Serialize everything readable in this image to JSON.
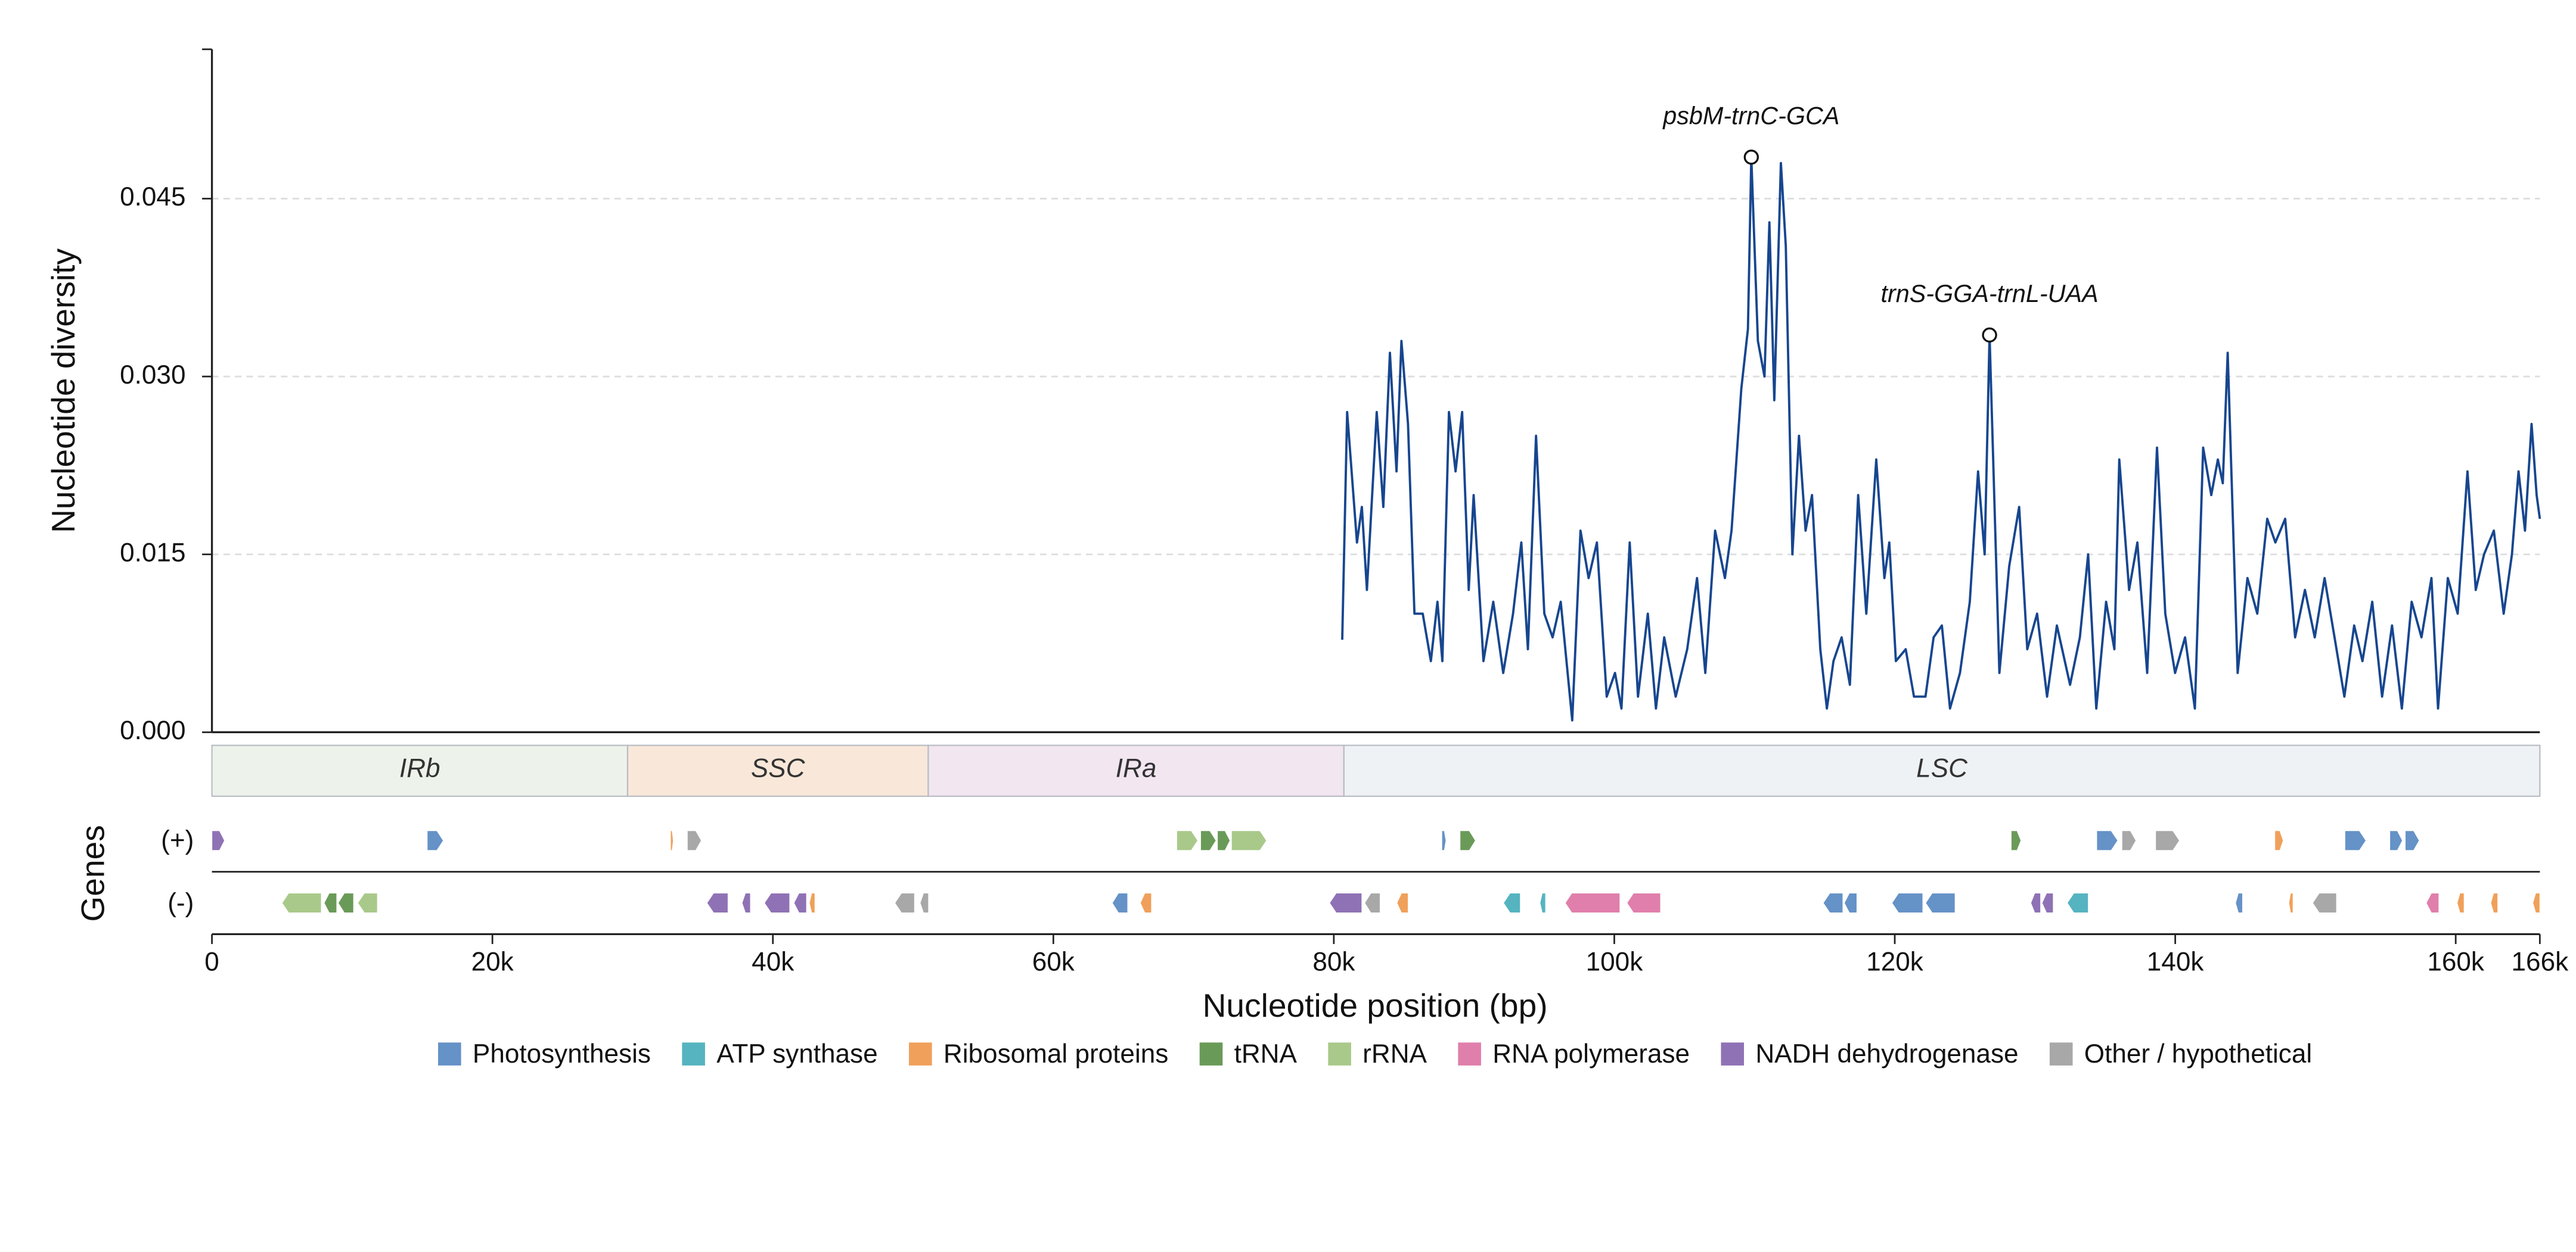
{
  "chart_data": {
    "type": "line",
    "ylabel": "Nucleotide diversity",
    "xlabel": "Nucleotide position (bp)",
    "track_label": "Genes",
    "strand_labels": [
      "(+)",
      "(-)"
    ],
    "color": "#17468f",
    "ylim": [
      0,
      0.0576
    ],
    "yticks": [
      {
        "value": 0,
        "label": "0.000"
      },
      0.015,
      {
        "value": 0.03,
        "label": "0.030"
      },
      0.045
    ],
    "grid": true,
    "xlim": [
      0,
      166000
    ],
    "xticks": [
      0,
      {
        "value": 20000,
        "label": "20k"
      },
      {
        "value": 40000,
        "label": "40k"
      },
      {
        "value": 60000,
        "label": "60k"
      },
      {
        "value": 80000,
        "label": "80k"
      },
      {
        "value": 100000,
        "label": "100k"
      },
      {
        "value": 120000,
        "label": "120k"
      },
      {
        "value": 140000,
        "label": "140k"
      },
      {
        "value": 160000,
        "label": "160k"
      },
      {
        "value": 166000,
        "label": "166k"
      }
    ],
    "x": [
      80600,
      80950,
      81650,
      82000,
      82360,
      83060,
      83530,
      84000,
      84470,
      84820,
      85290,
      85750,
      86340,
      86920,
      87390,
      87740,
      88210,
      88680,
      89150,
      89620,
      89970,
      90670,
      91370,
      92080,
      92780,
      93370,
      93840,
      94420,
      95010,
      95600,
      96180,
      97000,
      97590,
      98170,
      98760,
      99460,
      100050,
      100510,
      101100,
      101690,
      102390,
      102970,
      103560,
      104380,
      105200,
      105900,
      106490,
      107190,
      107890,
      108360,
      109060,
      109530,
      109770,
      110240,
      110710,
      111060,
      111410,
      111880,
      112230,
      112700,
      113170,
      113640,
      114100,
      114690,
      115160,
      115630,
      116210,
      116800,
      117390,
      117970,
      118680,
      119260,
      119610,
      120080,
      120780,
      121370,
      122190,
      122770,
      123360,
      123940,
      124650,
      125350,
      125940,
      126410,
      126760,
      127460,
      128160,
      128870,
      129450,
      130150,
      130860,
      131560,
      132500,
      133200,
      133790,
      134370,
      135070,
      135660,
      136010,
      136710,
      137300,
      138000,
      138700,
      139290,
      139990,
      140700,
      141400,
      141990,
      142570,
      143040,
      143390,
      143740,
      144450,
      145150,
      145850,
      146560,
      147140,
      147840,
      148550,
      149250,
      149950,
      150650,
      151360,
      152060,
      152760,
      153350,
      154050,
      154750,
      155460,
      156160,
      156860,
      157560,
      158270,
      158740,
      159440,
      160140,
      160840,
      161430,
      162020,
      162720,
      163420,
      164010,
      164480,
      164940,
      165410,
      165770,
      166000
    ],
    "values": [
      0.0078,
      0.027,
      0.016,
      0.019,
      0.012,
      0.027,
      0.019,
      0.032,
      0.022,
      0.033,
      0.026,
      0.01,
      0.01,
      0.006,
      0.011,
      0.006,
      0.027,
      0.022,
      0.027,
      0.012,
      0.02,
      0.006,
      0.011,
      0.005,
      0.01,
      0.016,
      0.007,
      0.025,
      0.01,
      0.008,
      0.011,
      0.001,
      0.017,
      0.013,
      0.016,
      0.003,
      0.005,
      0.002,
      0.016,
      0.003,
      0.01,
      0.002,
      0.008,
      0.003,
      0.007,
      0.013,
      0.005,
      0.017,
      0.013,
      0.017,
      0.029,
      0.034,
      0.0485,
      0.033,
      0.03,
      0.043,
      0.028,
      0.048,
      0.041,
      0.015,
      0.025,
      0.017,
      0.02,
      0.007,
      0.002,
      0.006,
      0.008,
      0.004,
      0.02,
      0.01,
      0.023,
      0.013,
      0.016,
      0.006,
      0.007,
      0.003,
      0.003,
      0.008,
      0.009,
      0.002,
      0.005,
      0.011,
      0.022,
      0.015,
      0.0335,
      0.005,
      0.014,
      0.019,
      0.007,
      0.01,
      0.003,
      0.009,
      0.004,
      0.008,
      0.015,
      0.002,
      0.011,
      0.007,
      0.023,
      0.012,
      0.016,
      0.005,
      0.024,
      0.01,
      0.005,
      0.008,
      0.002,
      0.024,
      0.02,
      0.023,
      0.021,
      0.032,
      0.005,
      0.013,
      0.01,
      0.018,
      0.016,
      0.018,
      0.008,
      0.012,
      0.008,
      0.013,
      0.008,
      0.003,
      0.009,
      0.006,
      0.011,
      0.003,
      0.009,
      0.002,
      0.011,
      0.008,
      0.013,
      0.002,
      0.013,
      0.01,
      0.022,
      0.012,
      0.015,
      0.017,
      0.01,
      0.015,
      0.022,
      0.017,
      0.026,
      0.02,
      0.018
    ],
    "annotations": [
      {
        "text": "psbM-trnC-GCA",
        "x": 109770,
        "y": 0.0485
      },
      {
        "text": "trnS-GGA-trnL-UAA",
        "x": 126760,
        "y": 0.0335
      }
    ],
    "regions": [
      {
        "name": "IRb",
        "start": 0,
        "end": 29640,
        "color": "#edf3ea"
      },
      {
        "name": "SSC",
        "start": 29640,
        "end": 51080,
        "color": "#f9e8d9"
      },
      {
        "name": "IRa",
        "start": 51080,
        "end": 80720,
        "color": "#f2e6f1"
      },
      {
        "name": "LSC",
        "start": 80720,
        "end": 166000,
        "color": "#eff2f5"
      }
    ],
    "legend": [
      {
        "name": "Photosynthesis",
        "color": "#6592c7"
      },
      {
        "name": "ATP synthase",
        "color": "#55b4c0"
      },
      {
        "name": "Ribosomal proteins",
        "color": "#f0a05a"
      },
      {
        "name": "tRNA",
        "color": "#6a9a58"
      },
      {
        "name": "rRNA",
        "color": "#a9c98a"
      },
      {
        "name": "RNA polymerase",
        "color": "#e07fab"
      },
      {
        "name": "NADH dehydrogenase",
        "color": "#8f72b5"
      },
      {
        "name": "Other / hypothetical",
        "color": "#a8a8a8"
      }
    ],
    "genes": [
      {
        "start": 0,
        "end": 900,
        "strand": "+",
        "category": "NADH dehydrogenase"
      },
      {
        "start": 15350,
        "end": 16500,
        "strand": "+",
        "category": "Photosynthesis"
      },
      {
        "start": 32700,
        "end": 32900,
        "strand": "+",
        "category": "Ribosomal proteins"
      },
      {
        "start": 33900,
        "end": 34900,
        "strand": "+",
        "category": "Other / hypothetical"
      },
      {
        "start": 68800,
        "end": 70300,
        "strand": "+",
        "category": "rRNA"
      },
      {
        "start": 70500,
        "end": 71600,
        "strand": "+",
        "category": "tRNA"
      },
      {
        "start": 71700,
        "end": 72600,
        "strand": "+",
        "category": "tRNA"
      },
      {
        "start": 72700,
        "end": 75200,
        "strand": "+",
        "category": "rRNA"
      },
      {
        "start": 87700,
        "end": 88000,
        "strand": "+",
        "category": "Photosynthesis"
      },
      {
        "start": 89000,
        "end": 90100,
        "strand": "+",
        "category": "tRNA"
      },
      {
        "start": 128300,
        "end": 129000,
        "strand": "+",
        "category": "tRNA"
      },
      {
        "start": 134400,
        "end": 135900,
        "strand": "+",
        "category": "Photosynthesis"
      },
      {
        "start": 136200,
        "end": 137200,
        "strand": "+",
        "category": "Other / hypothetical"
      },
      {
        "start": 138600,
        "end": 140300,
        "strand": "+",
        "category": "Other / hypothetical"
      },
      {
        "start": 147100,
        "end": 147700,
        "strand": "+",
        "category": "Ribosomal proteins"
      },
      {
        "start": 152100,
        "end": 153600,
        "strand": "+",
        "category": "Photosynthesis"
      },
      {
        "start": 155300,
        "end": 156200,
        "strand": "+",
        "category": "Photosynthesis"
      },
      {
        "start": 156400,
        "end": 157400,
        "strand": "+",
        "category": "Photosynthesis"
      },
      {
        "start": 5000,
        "end": 7800,
        "strand": "-",
        "category": "rRNA"
      },
      {
        "start": 8000,
        "end": 8900,
        "strand": "-",
        "category": "tRNA"
      },
      {
        "start": 9000,
        "end": 10100,
        "strand": "-",
        "category": "tRNA"
      },
      {
        "start": 10400,
        "end": 11800,
        "strand": "-",
        "category": "rRNA"
      },
      {
        "start": 35300,
        "end": 36800,
        "strand": "-",
        "category": "NADH dehydrogenase"
      },
      {
        "start": 37800,
        "end": 38400,
        "strand": "-",
        "category": "NADH dehydrogenase"
      },
      {
        "start": 39400,
        "end": 41200,
        "strand": "-",
        "category": "NADH dehydrogenase"
      },
      {
        "start": 41500,
        "end": 42400,
        "strand": "-",
        "category": "NADH dehydrogenase"
      },
      {
        "start": 42600,
        "end": 43000,
        "strand": "-",
        "category": "Ribosomal proteins"
      },
      {
        "start": 48700,
        "end": 50100,
        "strand": "-",
        "category": "Other / hypothetical"
      },
      {
        "start": 50500,
        "end": 51100,
        "strand": "-",
        "category": "Other / hypothetical"
      },
      {
        "start": 64200,
        "end": 65300,
        "strand": "-",
        "category": "Photosynthesis"
      },
      {
        "start": 66200,
        "end": 67000,
        "strand": "-",
        "category": "Ribosomal proteins"
      },
      {
        "start": 79700,
        "end": 82000,
        "strand": "-",
        "category": "NADH dehydrogenase"
      },
      {
        "start": 82200,
        "end": 83300,
        "strand": "-",
        "category": "Other / hypothetical"
      },
      {
        "start": 84500,
        "end": 85300,
        "strand": "-",
        "category": "Ribosomal proteins"
      },
      {
        "start": 92100,
        "end": 93300,
        "strand": "-",
        "category": "ATP synthase"
      },
      {
        "start": 94700,
        "end": 95100,
        "strand": "-",
        "category": "ATP synthase"
      },
      {
        "start": 96500,
        "end": 100400,
        "strand": "-",
        "category": "RNA polymerase"
      },
      {
        "start": 100900,
        "end": 103300,
        "strand": "-",
        "category": "RNA polymerase"
      },
      {
        "start": 114900,
        "end": 116300,
        "strand": "-",
        "category": "Photosynthesis"
      },
      {
        "start": 116400,
        "end": 117300,
        "strand": "-",
        "category": "Photosynthesis"
      },
      {
        "start": 119800,
        "end": 122000,
        "strand": "-",
        "category": "Photosynthesis"
      },
      {
        "start": 122200,
        "end": 124300,
        "strand": "-",
        "category": "Photosynthesis"
      },
      {
        "start": 129700,
        "end": 130400,
        "strand": "-",
        "category": "NADH dehydrogenase"
      },
      {
        "start": 130500,
        "end": 131300,
        "strand": "-",
        "category": "NADH dehydrogenase"
      },
      {
        "start": 132300,
        "end": 133800,
        "strand": "-",
        "category": "ATP synthase"
      },
      {
        "start": 144300,
        "end": 144800,
        "strand": "-",
        "category": "Photosynthesis"
      },
      {
        "start": 148100,
        "end": 148400,
        "strand": "-",
        "category": "Ribosomal proteins"
      },
      {
        "start": 149800,
        "end": 151500,
        "strand": "-",
        "category": "Other / hypothetical"
      },
      {
        "start": 157900,
        "end": 158800,
        "strand": "-",
        "category": "RNA polymerase"
      },
      {
        "start": 160100,
        "end": 160600,
        "strand": "-",
        "category": "Ribosomal proteins"
      },
      {
        "start": 162500,
        "end": 163000,
        "strand": "-",
        "category": "Ribosomal proteins"
      },
      {
        "start": 165500,
        "end": 166000,
        "strand": "-",
        "category": "Ribosomal proteins"
      }
    ]
  }
}
